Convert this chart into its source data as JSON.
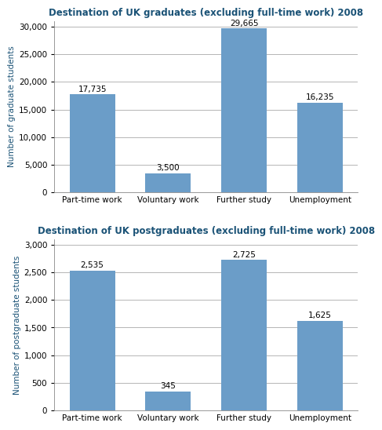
{
  "grad_title": "Destination of UK graduates (excluding full-time work) 2008",
  "postgrad_title": "Destination of UK postgraduates (excluding full-time work) 2008",
  "categories": [
    "Part-time work",
    "Voluntary work",
    "Further study",
    "Unemployment"
  ],
  "grad_values": [
    17735,
    3500,
    29665,
    16235
  ],
  "grad_labels": [
    "17,735",
    "3,500",
    "29,665",
    "16,235"
  ],
  "postgrad_values": [
    2535,
    345,
    2725,
    1625
  ],
  "postgrad_labels": [
    "2,535",
    "345",
    "2,725",
    "1,625"
  ],
  "bar_color": "#6b9dc8",
  "title_color": "#1a5276",
  "axis_label_color": "#1a5276",
  "grad_ylabel": "Number of graduate students",
  "postgrad_ylabel": "Number of postgraduate students",
  "grad_ylim": [
    0,
    31000
  ],
  "postgrad_ylim": [
    0,
    3100
  ],
  "grad_yticks": [
    0,
    5000,
    10000,
    15000,
    20000,
    25000,
    30000
  ],
  "postgrad_yticks": [
    0,
    500,
    1000,
    1500,
    2000,
    2500,
    3000
  ],
  "background_color": "#ffffff",
  "plot_bg_color": "#ffffff",
  "grid_color": "#aaaaaa",
  "title_fontsize": 8.5,
  "label_fontsize": 7.5,
  "axis_fontsize": 7.5,
  "tick_fontsize": 7.5
}
